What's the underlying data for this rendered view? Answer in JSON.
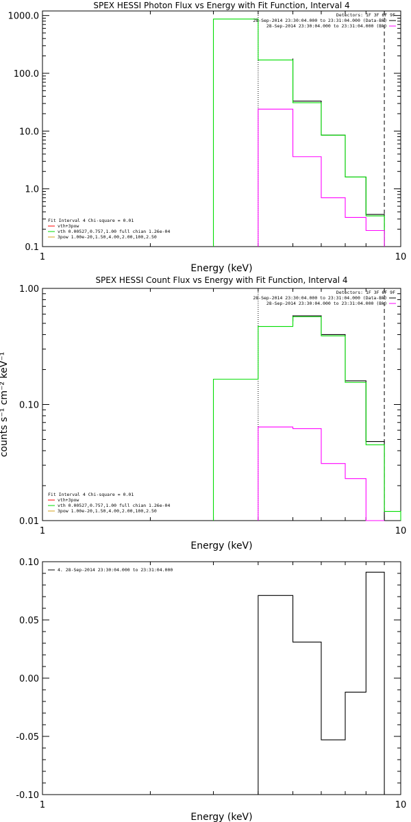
{
  "chart_data": [
    {
      "type": "line",
      "title": "SPEX HESSI Photon Flux vs Energy with Fit Function, Interval 4",
      "xlabel": "Energy (keV)",
      "ylabel": "",
      "x_scale": "log",
      "y_scale": "log",
      "xlim": [
        1,
        10
      ],
      "ylim": [
        0.1,
        1200
      ],
      "x_ticks": [
        "1",
        "10"
      ],
      "y_ticks": [
        "0.1",
        "1.0",
        "10.0",
        "100.0",
        "1000.0"
      ],
      "bin_edges": [
        4.0,
        5.0,
        6.0,
        7.0,
        8.0,
        9.0
      ],
      "series": [
        {
          "color": "#000000",
          "x": [
            5.0,
            6.0,
            7.0,
            8.0,
            9.0
          ],
          "values": [
            180,
            33,
            8.5,
            1.6,
            0.36
          ]
        },
        {
          "color": "#00dd00",
          "x": [
            3.0,
            4.0,
            5.0,
            6.0,
            7.0,
            8.0,
            9.0
          ],
          "values": [
            0.1,
            870,
            170,
            31,
            8.5,
            1.6,
            0.34
          ]
        },
        {
          "color": "#ff00ff",
          "x": [
            4.0,
            5.0,
            6.0,
            7.0,
            8.0,
            9.0
          ],
          "values": [
            0.1,
            24,
            3.6,
            0.7,
            0.32,
            0.19
          ]
        }
      ],
      "vlines": [
        {
          "x": 4.0,
          "style": "dotted"
        },
        {
          "x": 9.0,
          "style": "dashed"
        }
      ],
      "legend_right": {
        "header": "Detectors: 1F 3F 6F 9F",
        "entries": [
          {
            "text": "28-Sep-2014 23:30:04.000 to 23:31:04.000 (Data-Bk)",
            "color": "#000000"
          },
          {
            "text": "28-Sep-2014 23:30:04.000 to 23:31:04.000 (Bk)",
            "color": "#ff00ff"
          }
        ]
      },
      "legend_left": {
        "header": "Fit Interval  4    Chi-square = 0.01",
        "entries": [
          {
            "text": "vth+3pow",
            "color": "#ff0000"
          },
          {
            "text": "vth 0.00527,0.757,1.00  full chian 1.26e-04",
            "color": "#00dd00"
          },
          {
            "text": "3pow 1.00e-20,1.50,4.00,2.00,100,2.50",
            "color": "#d4a017"
          }
        ]
      }
    },
    {
      "type": "line",
      "title": "SPEX HESSI Count Flux vs Energy with Fit Function, Interval 4",
      "xlabel": "Energy (keV)",
      "ylabel": "counts s⁻¹ cm⁻² keV⁻¹",
      "x_scale": "log",
      "y_scale": "log",
      "xlim": [
        1,
        10
      ],
      "ylim": [
        0.01,
        1.0
      ],
      "x_ticks": [
        "1",
        "10"
      ],
      "y_ticks": [
        "0.01",
        "0.10",
        "1.00"
      ],
      "series": [
        {
          "color": "#000000",
          "x": [
            5.0,
            6.0,
            7.0,
            8.0,
            9.0
          ],
          "values": [
            0.52,
            0.58,
            0.4,
            0.16,
            0.048
          ]
        },
        {
          "color": "#00dd00",
          "x": [
            3.0,
            4.0,
            5.0,
            6.0,
            7.0,
            8.0,
            9.0,
            10.0
          ],
          "values": [
            0.01,
            0.165,
            0.47,
            0.57,
            0.39,
            0.155,
            0.045,
            0.012
          ]
        },
        {
          "color": "#ff00ff",
          "x": [
            4.0,
            5.0,
            6.0,
            7.0,
            8.0,
            9.0
          ],
          "values": [
            0.01,
            0.064,
            0.062,
            0.031,
            0.023,
            0.01
          ]
        }
      ],
      "vlines": [
        {
          "x": 4.0,
          "style": "dotted"
        },
        {
          "x": 9.0,
          "style": "dashed"
        }
      ],
      "legend_right": {
        "header": "Detectors: 1F 3F 6F 9F",
        "entries": [
          {
            "text": "28-Sep-2014 23:30:04.000 to 23:31:04.000 (Data-Bk)",
            "color": "#000000"
          },
          {
            "text": "28-Sep-2014 23:30:04.000 to 23:31:04.000 (Bk)",
            "color": "#ff00ff"
          }
        ]
      },
      "legend_left": {
        "header": "Fit Interval  4    Chi-square = 0.01",
        "entries": [
          {
            "text": "vth+3pow",
            "color": "#ff0000"
          },
          {
            "text": "vth 0.00527,0.757,1.00  full chian 1.26e-04",
            "color": "#00dd00"
          },
          {
            "text": "3pow 1.00e-20,1.50,4.00,2.00,100,2.50",
            "color": "#d4a017"
          }
        ]
      }
    },
    {
      "type": "line",
      "title": "",
      "xlabel": "Energy (keV)",
      "ylabel": "",
      "x_scale": "log",
      "y_scale": "linear",
      "xlim": [
        1,
        10
      ],
      "ylim": [
        -0.1,
        0.1
      ],
      "x_ticks": [
        "1",
        "10"
      ],
      "y_ticks": [
        "-0.10",
        "-0.05",
        "0.00",
        "0.05",
        "0.10"
      ],
      "series": [
        {
          "color": "#000000",
          "x": [
            4.0,
            5.0,
            6.0,
            7.0,
            8.0,
            9.0
          ],
          "values": [
            -0.1,
            0.071,
            0.031,
            -0.053,
            -0.012,
            0.091
          ]
        }
      ],
      "legend_left": {
        "header": "",
        "entries": [
          {
            "text": "4. 28-Sep-2014 23:30:04.000 to 23:31:04.000",
            "color": "#000000"
          }
        ]
      }
    }
  ]
}
